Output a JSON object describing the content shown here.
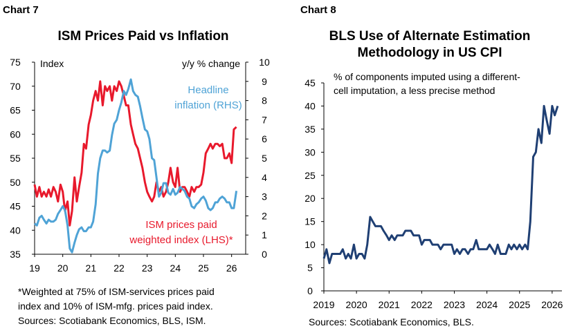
{
  "charts": [
    {
      "label": "Chart 7",
      "title": "ISM Prices Paid vs Inflation",
      "footnote": "*Weighted at 75% of ISM-services prices paid index and 10% of ISM-mfg. prices paid index.",
      "footnote_lines": [
        "*Weighted at 75% of ISM-services prices paid",
        "index and 10% of ISM-mfg. prices paid index."
      ],
      "sources": "Sources: Scotiabank Economics, BLS, ISM."
    },
    {
      "label": "Chart 8",
      "title": "BLS Use of Alternate Estimation Methodology in US CPI",
      "title_lines": [
        "BLS Use of Alternate Estimation",
        "Methodology in US CPI"
      ],
      "sources": "Sources: Scotiabank Economics, BLS."
    }
  ],
  "chart_data": [
    {
      "type": "line",
      "title": "ISM Prices Paid vs Inflation",
      "ylabel": "Index",
      "y2label": "y/y % change",
      "xlim": [
        2019,
        2026.5
      ],
      "x_ticks": [
        19,
        20,
        21,
        22,
        23,
        24,
        25,
        26
      ],
      "ylim": [
        35,
        75
      ],
      "y_ticks": [
        35,
        40,
        45,
        50,
        55,
        60,
        65,
        70,
        75
      ],
      "y2lim": [
        0,
        10
      ],
      "y2_ticks": [
        0,
        1,
        2,
        3,
        4,
        5,
        6,
        7,
        8,
        9,
        10
      ],
      "grid": false,
      "series": [
        {
          "name": "ISM prices paid weighted index (LHS)*",
          "axis": "left",
          "color": "#e8192c",
          "x": [
            2019.0,
            2019.08,
            2019.17,
            2019.25,
            2019.33,
            2019.42,
            2019.5,
            2019.58,
            2019.67,
            2019.75,
            2019.83,
            2019.92,
            2020.0,
            2020.08,
            2020.17,
            2020.25,
            2020.33,
            2020.42,
            2020.5,
            2020.58,
            2020.67,
            2020.75,
            2020.83,
            2020.92,
            2021.0,
            2021.08,
            2021.17,
            2021.25,
            2021.33,
            2021.42,
            2021.5,
            2021.58,
            2021.67,
            2021.75,
            2021.83,
            2021.92,
            2022.0,
            2022.08,
            2022.17,
            2022.25,
            2022.33,
            2022.42,
            2022.5,
            2022.58,
            2022.67,
            2022.75,
            2022.83,
            2022.92,
            2023.0,
            2023.08,
            2023.17,
            2023.25,
            2023.33,
            2023.42,
            2023.5,
            2023.58,
            2023.67,
            2023.75,
            2023.83,
            2023.92,
            2024.0,
            2024.08,
            2024.17,
            2024.25,
            2024.33,
            2024.42,
            2024.5,
            2024.58,
            2024.67,
            2024.75,
            2024.83,
            2024.92,
            2025.0,
            2025.08,
            2025.17,
            2025.25,
            2025.33,
            2025.42,
            2025.5,
            2025.58,
            2025.67,
            2025.75,
            2025.83,
            2025.92,
            2026.0,
            2026.08,
            2026.17
          ],
          "y": [
            49.5,
            47,
            49,
            47,
            48,
            47,
            48.5,
            47,
            49,
            48,
            46,
            49.5,
            48,
            44,
            46,
            41,
            44,
            51,
            46,
            49,
            52,
            58,
            57,
            62,
            64,
            67,
            69,
            67,
            71,
            66,
            70,
            69,
            70,
            67,
            70,
            69,
            71,
            70,
            68,
            66,
            66,
            62,
            60,
            58,
            57,
            55,
            53,
            50,
            48,
            47,
            46,
            47,
            50,
            48,
            49,
            47,
            48,
            50,
            53,
            50,
            49,
            53,
            48,
            49,
            49,
            48,
            47,
            49,
            48,
            49,
            49,
            49.5,
            52,
            56,
            57,
            58,
            57,
            58,
            58,
            57.5,
            58,
            55,
            55,
            56,
            54,
            61,
            61.5
          ]
        },
        {
          "name": "Headline inflation (RHS)",
          "axis": "right",
          "color": "#4fa3d6",
          "x": [
            2019.0,
            2019.08,
            2019.17,
            2019.25,
            2019.33,
            2019.42,
            2019.5,
            2019.58,
            2019.67,
            2019.75,
            2019.83,
            2019.92,
            2020.0,
            2020.08,
            2020.17,
            2020.25,
            2020.33,
            2020.42,
            2020.5,
            2020.58,
            2020.67,
            2020.75,
            2020.83,
            2020.92,
            2021.0,
            2021.08,
            2021.17,
            2021.25,
            2021.33,
            2021.42,
            2021.5,
            2021.58,
            2021.67,
            2021.75,
            2021.83,
            2021.92,
            2022.0,
            2022.08,
            2022.17,
            2022.25,
            2022.33,
            2022.42,
            2022.5,
            2022.58,
            2022.67,
            2022.75,
            2022.83,
            2022.92,
            2023.0,
            2023.08,
            2023.17,
            2023.25,
            2023.33,
            2023.42,
            2023.5,
            2023.58,
            2023.67,
            2023.75,
            2023.83,
            2023.92,
            2024.0,
            2024.08,
            2024.17,
            2024.25,
            2024.33,
            2024.42,
            2024.5,
            2024.58,
            2024.67,
            2024.75,
            2024.83,
            2024.92,
            2025.0,
            2025.08,
            2025.17,
            2025.25,
            2025.33,
            2025.42,
            2025.5,
            2025.58,
            2025.67,
            2025.75,
            2025.83,
            2025.92,
            2026.0,
            2026.08,
            2026.17
          ],
          "y": [
            1.6,
            1.5,
            1.9,
            2.0,
            1.8,
            1.6,
            1.8,
            1.7,
            1.7,
            1.8,
            2.1,
            2.3,
            2.5,
            2.3,
            1.5,
            0.3,
            0.1,
            0.6,
            1.0,
            1.3,
            1.4,
            1.2,
            1.2,
            1.4,
            1.4,
            1.7,
            2.6,
            4.2,
            5.0,
            5.4,
            5.4,
            5.3,
            5.4,
            6.2,
            6.8,
            7.0,
            7.5,
            7.9,
            8.5,
            8.3,
            8.6,
            9.1,
            8.5,
            8.3,
            8.2,
            7.7,
            7.1,
            6.5,
            6.4,
            6.0,
            5.0,
            4.9,
            4.0,
            3.0,
            3.2,
            3.7,
            3.7,
            3.2,
            3.1,
            3.4,
            3.1,
            3.2,
            3.5,
            3.4,
            3.3,
            3.0,
            2.9,
            2.5,
            2.4,
            2.6,
            2.7,
            2.9,
            3.0,
            2.8,
            2.4,
            2.3,
            2.4,
            2.7,
            2.7,
            2.9,
            3.0,
            2.9,
            2.7,
            2.7,
            2.4,
            2.4,
            3.3
          ]
        }
      ],
      "annotations": [
        {
          "text_lines": [
            "Headline",
            "inflation (RHS)"
          ],
          "color": "#4fa3d6"
        },
        {
          "text_lines": [
            "ISM prices paid",
            "weighted index (LHS)*"
          ],
          "color": "#e8192c"
        }
      ]
    },
    {
      "type": "line",
      "title": "BLS Use of Alternate Estimation Methodology in US CPI",
      "ylabel": "% of components imputed using a different-cell imputation, a less precise method",
      "ylabel_lines": [
        "% of components imputed using a different-",
        "cell imputation, a less precise method"
      ],
      "xlim": [
        2019,
        2026.3
      ],
      "x_ticks": [
        2019,
        2020,
        2021,
        2022,
        2023,
        2024,
        2025,
        2026
      ],
      "ylim": [
        0,
        45
      ],
      "y_ticks": [
        0,
        5,
        10,
        15,
        20,
        25,
        30,
        35,
        40,
        45
      ],
      "grid": false,
      "series": [
        {
          "name": "",
          "color": "#1f3f73",
          "x": [
            2019.0,
            2019.08,
            2019.17,
            2019.25,
            2019.33,
            2019.42,
            2019.5,
            2019.58,
            2019.67,
            2019.75,
            2019.83,
            2019.92,
            2020.0,
            2020.08,
            2020.17,
            2020.25,
            2020.33,
            2020.42,
            2020.5,
            2020.58,
            2020.67,
            2020.75,
            2020.83,
            2020.92,
            2021.0,
            2021.08,
            2021.17,
            2021.25,
            2021.33,
            2021.42,
            2021.5,
            2021.58,
            2021.67,
            2021.75,
            2021.83,
            2021.92,
            2022.0,
            2022.08,
            2022.17,
            2022.25,
            2022.33,
            2022.42,
            2022.5,
            2022.58,
            2022.67,
            2022.75,
            2022.83,
            2022.92,
            2023.0,
            2023.08,
            2023.17,
            2023.25,
            2023.33,
            2023.42,
            2023.5,
            2023.58,
            2023.67,
            2023.75,
            2023.83,
            2023.92,
            2024.0,
            2024.08,
            2024.17,
            2024.25,
            2024.33,
            2024.42,
            2024.5,
            2024.58,
            2024.67,
            2024.75,
            2024.83,
            2024.92,
            2025.0,
            2025.08,
            2025.17,
            2025.25,
            2025.33,
            2025.42,
            2025.5,
            2025.58,
            2025.67,
            2025.75,
            2025.83,
            2025.92,
            2026.0,
            2026.08,
            2026.17
          ],
          "y": [
            7,
            9,
            6,
            8,
            8,
            8,
            8,
            9,
            7,
            8,
            7,
            10,
            7,
            8,
            8,
            7,
            10,
            16,
            15,
            14,
            14,
            14,
            13,
            12,
            11,
            12,
            11,
            12,
            12,
            12,
            13,
            13,
            13,
            12,
            12,
            12,
            10,
            11,
            11,
            11,
            10,
            10,
            10,
            9,
            10,
            10,
            10,
            10,
            8,
            9,
            8,
            9,
            9,
            8,
            9,
            9,
            11,
            9,
            9,
            9,
            9,
            10,
            9,
            8,
            10,
            8,
            8,
            8,
            10,
            9,
            10,
            9,
            10,
            9,
            10,
            9,
            15,
            29,
            30,
            35,
            32,
            40,
            37,
            34,
            40,
            38,
            40
          ]
        }
      ]
    }
  ]
}
